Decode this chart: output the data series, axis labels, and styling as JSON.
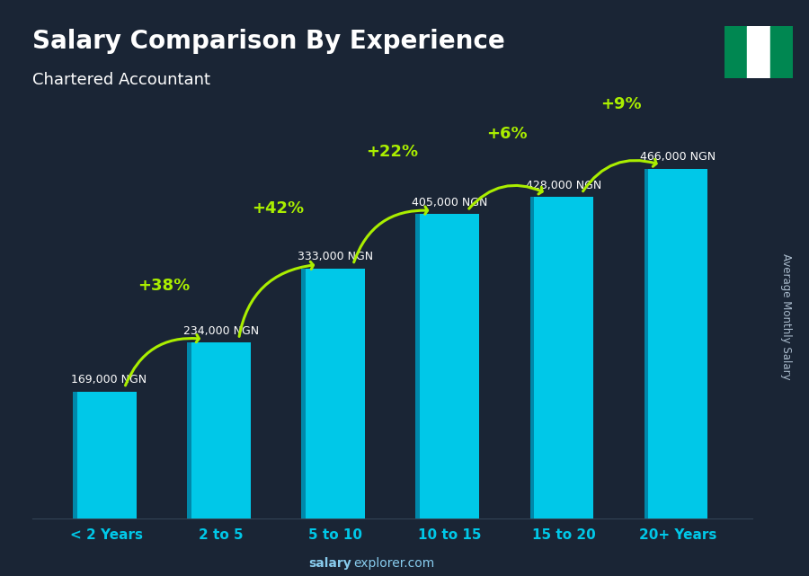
{
  "title": "Salary Comparison By Experience",
  "subtitle": "Chartered Accountant",
  "categories": [
    "< 2 Years",
    "2 to 5",
    "5 to 10",
    "10 to 15",
    "15 to 20",
    "20+ Years"
  ],
  "values": [
    169000,
    234000,
    333000,
    405000,
    428000,
    466000
  ],
  "labels": [
    "169,000 NGN",
    "234,000 NGN",
    "333,000 NGN",
    "405,000 NGN",
    "428,000 NGN",
    "466,000 NGN"
  ],
  "pct_changes": [
    "+38%",
    "+42%",
    "+22%",
    "+6%",
    "+9%"
  ],
  "bar_color": "#00c8e8",
  "bar_edge_left": "#0088aa",
  "bar_edge_right": "#005570",
  "bar_top": "#40e0f0",
  "bg_color": "#1a2535",
  "text_color_white": "#ffffff",
  "text_color_green": "#aaee00",
  "ylabel": "Average Monthly Salary",
  "footer_bold": "salary",
  "footer_regular": "explorer.com",
  "ylim": [
    0,
    560000
  ],
  "figsize": [
    9.0,
    6.41
  ],
  "dpi": 100,
  "flag_green": "#008751",
  "flag_white": "#ffffff"
}
